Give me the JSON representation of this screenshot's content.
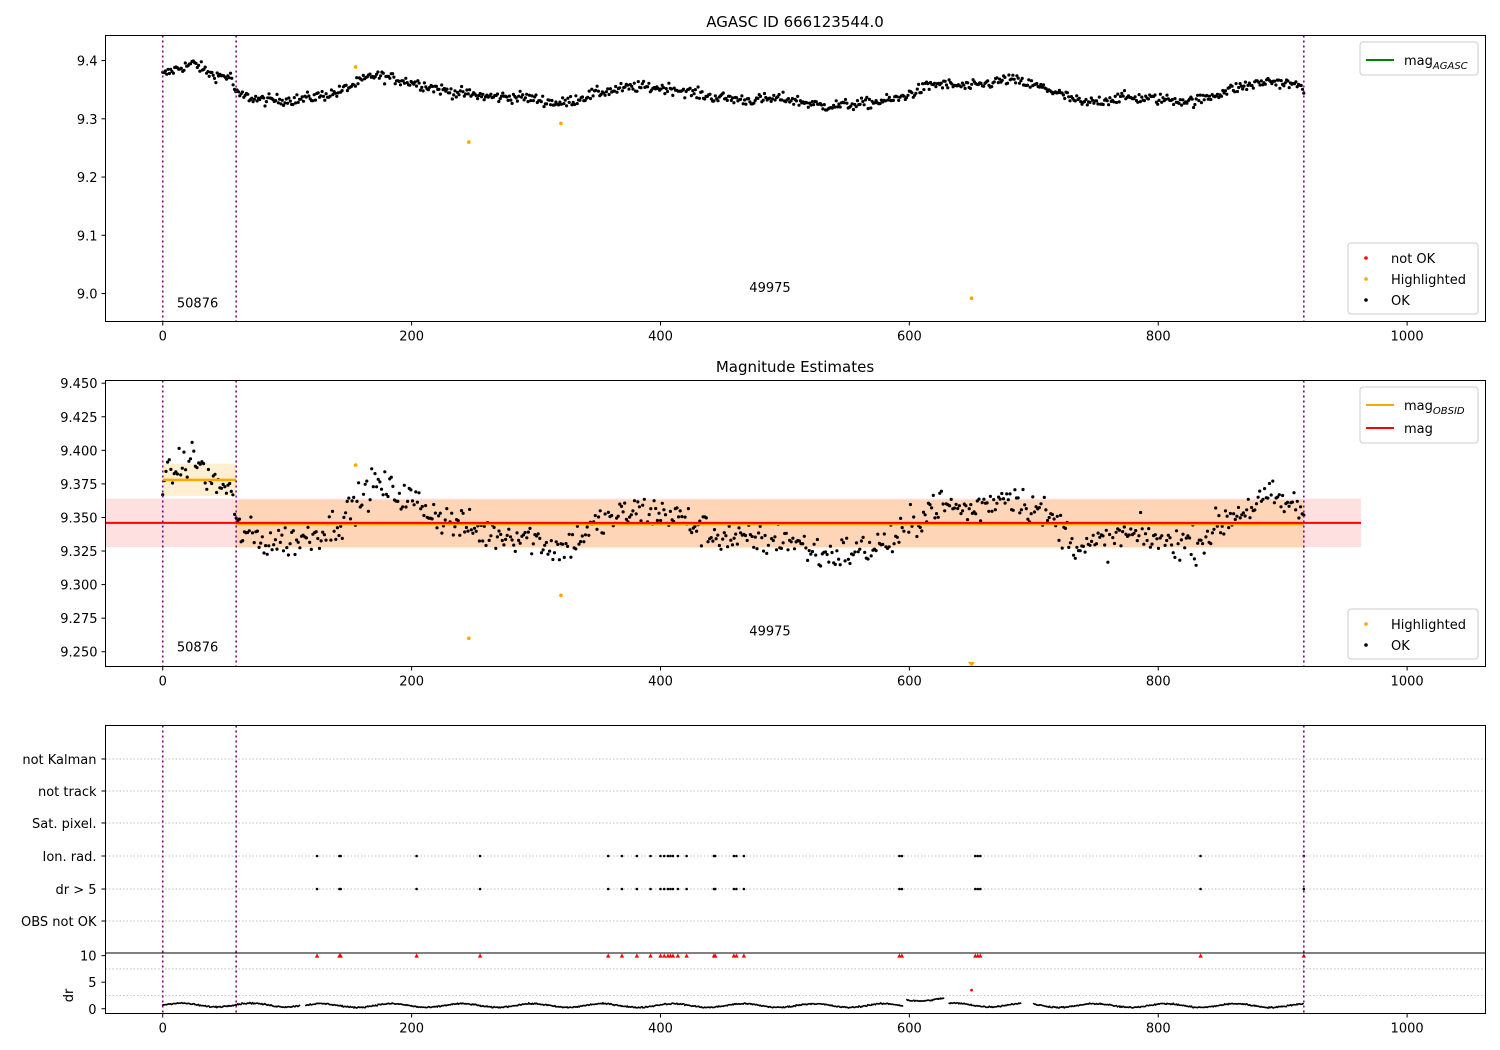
{
  "chart_data": [
    {
      "type": "scatter",
      "title": "AGASC ID 666123544.0",
      "xlim": [
        -46,
        1063
      ],
      "ylim": [
        8.952,
        9.443
      ],
      "xticks": [
        0,
        200,
        400,
        600,
        800,
        1000
      ],
      "yticks": [
        9.0,
        9.1,
        9.2,
        9.3,
        9.4
      ],
      "ytick_decimals": 1,
      "obs_boundaries": [
        0,
        59,
        917
      ],
      "annotations": [
        {
          "text": "50876",
          "x": 28,
          "y": 8.976
        },
        {
          "text": "49975",
          "x": 488,
          "y": 9.003
        }
      ],
      "line_legend": [
        {
          "label": "mag",
          "sub": "AGASC",
          "color": "#008000"
        }
      ],
      "legend": [
        {
          "label": "not OK",
          "color": "#ff0000"
        },
        {
          "label": "Highlighted",
          "color": "#ffa500"
        },
        {
          "label": "OK",
          "color": "#000000"
        }
      ],
      "ok_trend": {
        "x": [
          0,
          10,
          25,
          40,
          55,
          59,
          80,
          110,
          140,
          170,
          200,
          230,
          260,
          290,
          320,
          350,
          380,
          410,
          440,
          470,
          500,
          530,
          560,
          590,
          620,
          650,
          680,
          710,
          740,
          770,
          800,
          830,
          860,
          890,
          917
        ],
        "y": [
          9.375,
          9.385,
          9.395,
          9.375,
          9.372,
          9.342,
          9.332,
          9.333,
          9.345,
          9.375,
          9.363,
          9.347,
          9.338,
          9.337,
          9.326,
          9.345,
          9.355,
          9.352,
          9.338,
          9.332,
          9.335,
          9.322,
          9.325,
          9.334,
          9.36,
          9.355,
          9.368,
          9.352,
          9.326,
          9.337,
          9.334,
          9.33,
          9.352,
          9.365,
          9.355
        ],
        "scatter": 0.009,
        "count": 860
      },
      "highlighted": [
        {
          "x": 155,
          "y": 9.389
        },
        {
          "x": 246,
          "y": 9.26
        },
        {
          "x": 320,
          "y": 9.292
        },
        {
          "x": 650,
          "y": 8.992
        }
      ]
    },
    {
      "type": "scatter",
      "title": "Magnitude Estimates",
      "xlim": [
        -46,
        1063
      ],
      "ylim": [
        9.239,
        9.452
      ],
      "xticks": [
        0,
        200,
        400,
        600,
        800,
        1000
      ],
      "yticks": [
        9.25,
        9.275,
        9.3,
        9.325,
        9.35,
        9.375,
        9.4,
        9.425,
        9.45
      ],
      "ytick_decimals": 3,
      "obs_boundaries": [
        0,
        59,
        917
      ],
      "annotations": [
        {
          "text": "50876",
          "x": 28,
          "y": 9.25
        },
        {
          "text": "49975",
          "x": 488,
          "y": 9.262
        }
      ],
      "line_legend": [
        {
          "label": "mag",
          "sub": "OBSID",
          "color": "#ffa500"
        },
        {
          "label": "mag",
          "sub": "",
          "color": "#ff0000"
        }
      ],
      "legend": [
        {
          "label": "Highlighted",
          "color": "#ffa500"
        },
        {
          "label": "OK",
          "color": "#000000"
        }
      ],
      "mag": 9.346,
      "mag_band": [
        9.328,
        9.364
      ],
      "mag_span": [
        -46,
        963
      ],
      "obsid_segments": [
        {
          "x0": 0,
          "x1": 59,
          "mag": 9.378,
          "band": [
            9.366,
            9.39
          ]
        },
        {
          "x0": 59,
          "x1": 917,
          "mag": 9.345,
          "band": [
            9.327,
            9.363
          ]
        }
      ],
      "ok_trend": {
        "x": [
          0,
          10,
          25,
          40,
          55,
          59,
          80,
          110,
          140,
          170,
          200,
          230,
          260,
          290,
          320,
          350,
          380,
          410,
          440,
          470,
          500,
          530,
          560,
          590,
          620,
          650,
          680,
          710,
          740,
          770,
          800,
          830,
          860,
          890,
          917
        ],
        "y": [
          9.375,
          9.385,
          9.395,
          9.375,
          9.372,
          9.342,
          9.332,
          9.333,
          9.345,
          9.375,
          9.363,
          9.347,
          9.338,
          9.337,
          9.326,
          9.345,
          9.355,
          9.352,
          9.338,
          9.332,
          9.335,
          9.322,
          9.325,
          9.334,
          9.36,
          9.355,
          9.368,
          9.352,
          9.326,
          9.337,
          9.334,
          9.33,
          9.352,
          9.365,
          9.355
        ],
        "scatter": 0.012,
        "count": 700
      },
      "highlighted": [
        {
          "x": 155,
          "y": 9.389
        },
        {
          "x": 246,
          "y": 9.26
        },
        {
          "x": 320,
          "y": 9.292
        }
      ],
      "off_scale_marker": {
        "x": 650,
        "y": 9.241
      }
    },
    {
      "type": "scatter",
      "xlim": [
        -46,
        1063
      ],
      "xticks": [
        0,
        200,
        400,
        600,
        800,
        1000
      ],
      "obs_boundaries": [
        0,
        59,
        917
      ],
      "flag_rows": [
        "not Kalman",
        "not track",
        "Sat. pixel.",
        "Ion. rad.",
        "dr > 5",
        "OBS not OK"
      ],
      "flag_events": {
        "Ion. rad.": [
          124,
          142,
          143,
          204,
          255,
          358,
          369,
          381,
          392,
          400,
          403,
          406,
          408,
          410,
          414,
          421,
          443,
          444,
          459,
          461,
          467,
          592,
          594,
          653,
          655,
          657,
          834,
          917
        ],
        "dr > 5": [
          124,
          142,
          143,
          204,
          255,
          358,
          369,
          381,
          392,
          400,
          403,
          406,
          408,
          410,
          414,
          421,
          443,
          444,
          459,
          461,
          467,
          592,
          594,
          653,
          655,
          657,
          834,
          917
        ]
      },
      "dr": {
        "ylabel": "dr",
        "ylim": [
          -0.8,
          10.5
        ],
        "yticks": [
          0,
          5,
          10
        ],
        "clipped_x": [
          124,
          142,
          143,
          204,
          255,
          358,
          369,
          381,
          392,
          400,
          403,
          406,
          408,
          410,
          414,
          421,
          443,
          444,
          459,
          461,
          467,
          592,
          594,
          653,
          655,
          657,
          834,
          917
        ],
        "clipped_y": 10,
        "red_point": {
          "x": 650,
          "y": 3.5
        },
        "series_segments": [
          {
            "x0": 0,
            "x1": 110,
            "base": 0.7
          },
          {
            "x0": 115,
            "x1": 595,
            "base": 0.6
          },
          {
            "x0": 598,
            "x1": 628,
            "base": 1.8
          },
          {
            "x0": 632,
            "x1": 690,
            "base": 0.7
          },
          {
            "x0": 700,
            "x1": 917,
            "base": 0.6
          }
        ]
      }
    }
  ]
}
